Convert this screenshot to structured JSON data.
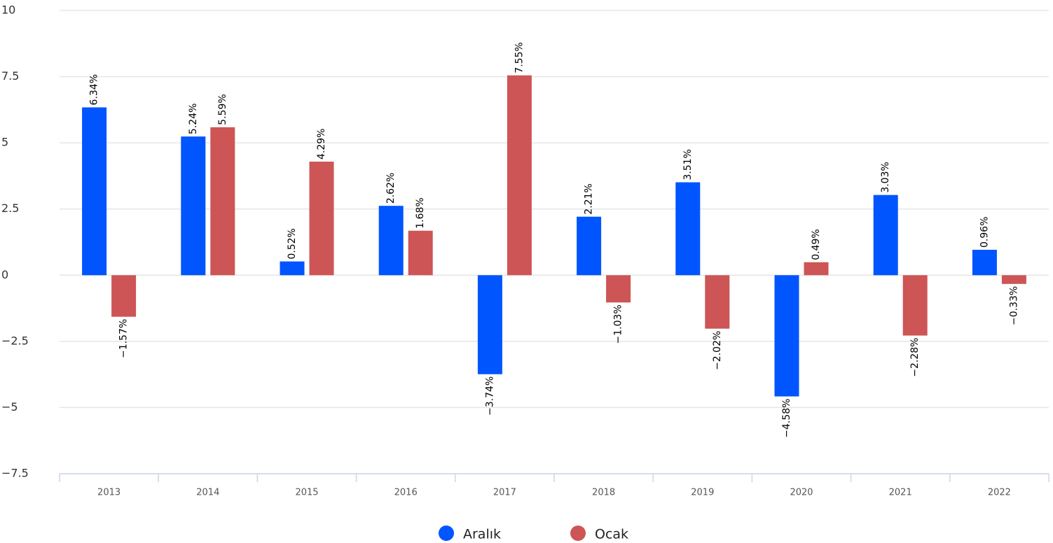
{
  "chart_data": {
    "type": "bar",
    "categories": [
      "2013",
      "2014",
      "2015",
      "2016",
      "2017",
      "2018",
      "2019",
      "2020",
      "2021",
      "2022"
    ],
    "series": [
      {
        "name": "Aralık",
        "color": "#0055ff",
        "values": [
          6.34,
          5.24,
          0.52,
          2.62,
          -3.74,
          2.21,
          3.51,
          -4.58,
          3.03,
          0.96
        ],
        "value_labels": [
          "6.34%",
          "5.24%",
          "0.52%",
          "2.62%",
          "−3.74%",
          "2.21%",
          "3.51%",
          "−4.58%",
          "3.03%",
          "0.96%"
        ]
      },
      {
        "name": "Ocak",
        "color": "#cd5555",
        "values": [
          -1.57,
          5.59,
          4.29,
          1.68,
          7.55,
          -1.03,
          -2.02,
          0.49,
          -2.28,
          -0.33
        ],
        "value_labels": [
          "−1.57%",
          "5.59%",
          "4.29%",
          "1.68%",
          "7.55%",
          "−1.03%",
          "−2.02%",
          "0.49%",
          "−2.28%",
          "−0.33%"
        ]
      }
    ],
    "ylim": [
      -7.5,
      10
    ],
    "yticks": [
      {
        "value": -7.5,
        "label": "−7.5"
      },
      {
        "value": -5,
        "label": "−5"
      },
      {
        "value": -2.5,
        "label": "−2.5"
      },
      0,
      2.5,
      5,
      7.5,
      10
    ],
    "grid": true,
    "legend": "bottom"
  }
}
